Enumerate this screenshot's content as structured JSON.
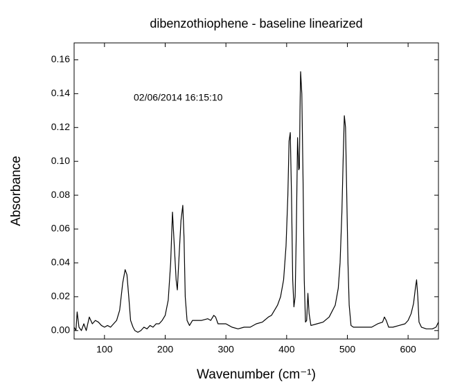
{
  "chart_data": {
    "type": "line",
    "title": "dibenzothiophene - baseline linearized",
    "annotation": "02/06/2014 16:15:10",
    "xlabel": "Wavenumber (cm⁻¹)",
    "ylabel": "Absorbance",
    "color": "#000000",
    "xlim": [
      50,
      650
    ],
    "ylim": [
      -0.005,
      0.17
    ],
    "xticks": [
      100,
      200,
      300,
      400,
      500,
      600
    ],
    "yticks": [
      {
        "value": 0,
        "label": "0.00"
      },
      {
        "value": 0.02,
        "label": "0.02"
      },
      {
        "value": 0.04,
        "label": "0.04"
      },
      {
        "value": 0.06,
        "label": "0.06"
      },
      {
        "value": 0.08,
        "label": "0.08"
      },
      {
        "value": 0.1,
        "label": "0.10"
      },
      {
        "value": 0.12,
        "label": "0.12"
      },
      {
        "value": 0.14,
        "label": "0.14"
      },
      {
        "value": 0.16,
        "label": "0.16"
      }
    ],
    "x": [
      50,
      53,
      55,
      58,
      62,
      66,
      70,
      75,
      80,
      85,
      90,
      95,
      100,
      105,
      110,
      115,
      120,
      125,
      130,
      134,
      137,
      140,
      143,
      147,
      150,
      155,
      160,
      165,
      170,
      175,
      180,
      185,
      190,
      195,
      200,
      205,
      209,
      212,
      215,
      218,
      220,
      223,
      226,
      229,
      231,
      233,
      236,
      240,
      245,
      250,
      260,
      270,
      275,
      280,
      283,
      287,
      295,
      300,
      305,
      310,
      320,
      330,
      340,
      350,
      360,
      370,
      375,
      380,
      385,
      390,
      395,
      399,
      402,
      404,
      406,
      408,
      410,
      412,
      414,
      416,
      418,
      420,
      421,
      422,
      423,
      425,
      427,
      429,
      431,
      433,
      435,
      437,
      440,
      450,
      460,
      470,
      480,
      485,
      488,
      491,
      493,
      495,
      497,
      499,
      501,
      503,
      506,
      510,
      520,
      530,
      540,
      550,
      558,
      561,
      564,
      568,
      575,
      585,
      595,
      600,
      605,
      609,
      612,
      614,
      616,
      618,
      622,
      630,
      640,
      646,
      650
    ],
    "values": [
      0.002,
      0.0,
      0.011,
      0.002,
      0.0,
      0.004,
      0.0,
      0.008,
      0.004,
      0.006,
      0.005,
      0.003,
      0.002,
      0.003,
      0.002,
      0.004,
      0.006,
      0.012,
      0.028,
      0.036,
      0.033,
      0.02,
      0.006,
      0.002,
      0.0,
      -0.001,
      0.0,
      0.002,
      0.001,
      0.003,
      0.002,
      0.004,
      0.004,
      0.006,
      0.009,
      0.018,
      0.04,
      0.07,
      0.05,
      0.03,
      0.024,
      0.045,
      0.065,
      0.074,
      0.055,
      0.02,
      0.006,
      0.003,
      0.006,
      0.006,
      0.006,
      0.007,
      0.006,
      0.009,
      0.008,
      0.004,
      0.004,
      0.004,
      0.003,
      0.002,
      0.001,
      0.002,
      0.002,
      0.004,
      0.005,
      0.008,
      0.009,
      0.012,
      0.015,
      0.02,
      0.03,
      0.05,
      0.08,
      0.112,
      0.117,
      0.08,
      0.03,
      0.014,
      0.02,
      0.06,
      0.114,
      0.095,
      0.096,
      0.13,
      0.153,
      0.14,
      0.09,
      0.03,
      0.005,
      0.006,
      0.022,
      0.01,
      0.003,
      0.004,
      0.005,
      0.008,
      0.015,
      0.025,
      0.04,
      0.07,
      0.1,
      0.127,
      0.12,
      0.08,
      0.04,
      0.015,
      0.003,
      0.002,
      0.002,
      0.002,
      0.002,
      0.004,
      0.005,
      0.008,
      0.006,
      0.002,
      0.002,
      0.003,
      0.004,
      0.006,
      0.01,
      0.016,
      0.025,
      0.03,
      0.02,
      0.005,
      0.002,
      0.001,
      0.001,
      0.002,
      0.005
    ]
  }
}
